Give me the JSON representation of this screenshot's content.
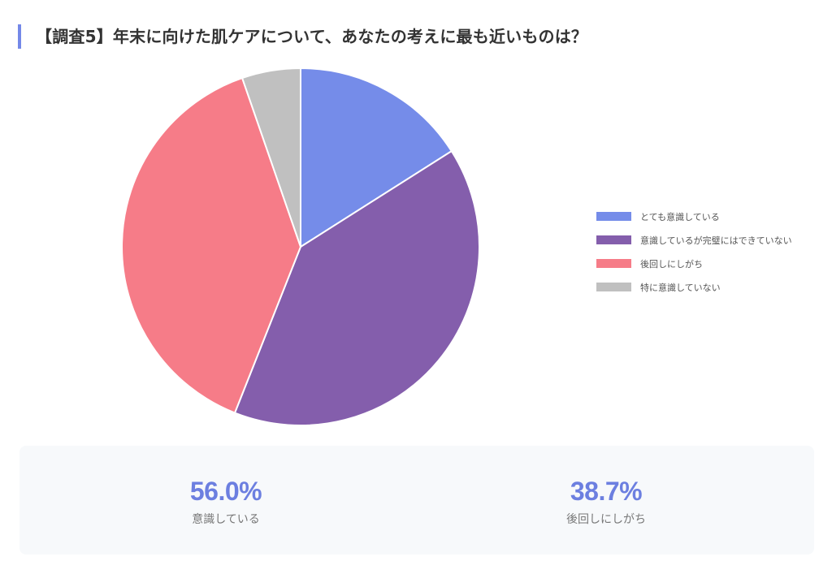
{
  "title": "【調査5】年末に向けた肌ケアについて、あなたの考えに最も近いものは？",
  "accent_color": "#7488e8",
  "chart_data": {
    "type": "pie",
    "title": "【調査5】年末に向けた肌ケアについて、あなたの考えに最も近いものは？",
    "categories": [
      "とても意識している",
      "意識しているが完璧にはできていない",
      "後回しにしがち",
      "特に意識していない"
    ],
    "values": [
      16.0,
      40.0,
      38.7,
      5.3
    ],
    "colors": [
      "#758ce9",
      "#845eac",
      "#f67c88",
      "#c0c0c0"
    ],
    "legend_position": "right",
    "start_angle": "top, clockwise"
  },
  "legend": [
    {
      "label": "とても意識している",
      "color": "#758ce9"
    },
    {
      "label": "意識しているが完璧にはできていない",
      "color": "#845eac"
    },
    {
      "label": "後回しにしがち",
      "color": "#f67c88"
    },
    {
      "label": "特に意識していない",
      "color": "#c0c0c0"
    }
  ],
  "summary": [
    {
      "value": "56.0%",
      "label": "意識している"
    },
    {
      "value": "38.7%",
      "label": "後回しにしがち"
    }
  ]
}
